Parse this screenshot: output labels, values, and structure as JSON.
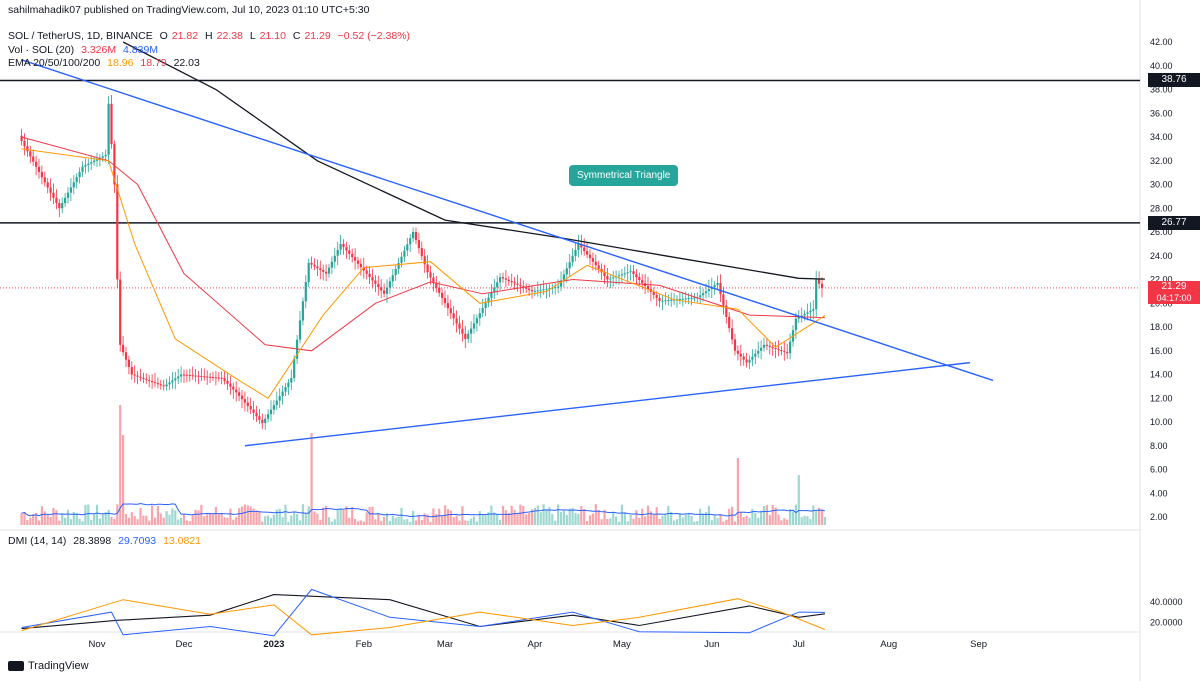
{
  "publisher_line": "sahilmahadik07 published on TradingView.com, Jul 10, 2023 01:10 UTC+5:30",
  "header": {
    "symbol": "SOL / TetherUS, 1D, BINANCE",
    "open_label": "O",
    "open": "21.82",
    "high_label": "H",
    "high": "22.38",
    "low_label": "L",
    "low": "21.10",
    "close_label": "C",
    "close": "21.29",
    "change": "−0.52 (−2.38%)",
    "vol_label": "Vol · SOL (20)",
    "vol_value": "3.326M",
    "vol_ma": "4.839M",
    "ema_label": "EMA 20/50/100/200",
    "ema20": "18.96",
    "ema50": "18.79",
    "ema200": "22.03"
  },
  "dmi": {
    "label": "DMI (14, 14)",
    "adx": "28.3898",
    "plus_di": "29.7093",
    "minus_di": "13.0821"
  },
  "annotation": "Symmetrical Triangle",
  "price_tags": {
    "resistance_top": "38.76",
    "resistance_mid": "26.77",
    "last_price": "21.29",
    "countdown": "04:17:00"
  },
  "branding": "TradingView",
  "colors": {
    "up": "#26a69a",
    "down": "#f23645",
    "trend": "#2962ff",
    "ema20": "#ff9800",
    "ema50": "#f23645",
    "ema200": "#131722",
    "level": "#131722"
  },
  "chart_data": {
    "type": "candlestick",
    "price_axis_ticks": [
      "2.00",
      "4.00",
      "6.00",
      "8.00",
      "10.00",
      "12.00",
      "14.00",
      "16.00",
      "18.00",
      "20.00",
      "22.00",
      "24.00",
      "26.00",
      "28.00",
      "30.00",
      "32.00",
      "34.00",
      "36.00",
      "38.00",
      "40.00",
      "42.00"
    ],
    "dmi_axis_ticks": [
      "20.0000",
      "40.0000"
    ],
    "time_axis_ticks": [
      "Nov",
      "Dec",
      "2023",
      "Feb",
      "Mar",
      "Apr",
      "May",
      "Jun",
      "Jul",
      "Aug",
      "Sep"
    ],
    "horizontal_levels": [
      38.76,
      26.77
    ],
    "close_path": [
      {
        "x": "Oct 6",
        "y": 34.1
      },
      {
        "x": "Oct 20",
        "y": 28.0
      },
      {
        "x": "Oct 28",
        "y": 31.5
      },
      {
        "x": "Nov 5",
        "y": 32.5
      },
      {
        "x": "Nov 6",
        "y": 36.8
      },
      {
        "x": "Nov 8",
        "y": 30.0
      },
      {
        "x": "Nov 9",
        "y": 22.0
      },
      {
        "x": "Nov 10",
        "y": 16.5
      },
      {
        "x": "Nov 14",
        "y": 14.0
      },
      {
        "x": "Nov 25",
        "y": 13.0
      },
      {
        "x": "Dec 1",
        "y": 14.0
      },
      {
        "x": "Dec 15",
        "y": 13.7
      },
      {
        "x": "Dec 20",
        "y": 12.5
      },
      {
        "x": "Dec 29",
        "y": 9.9
      },
      {
        "x": "Jan 8",
        "y": 13.7
      },
      {
        "x": "Jan 14",
        "y": 23.4
      },
      {
        "x": "Jan 20",
        "y": 22.5
      },
      {
        "x": "Jan 25",
        "y": 25.0
      },
      {
        "x": "Feb 9",
        "y": 20.8
      },
      {
        "x": "Feb 19",
        "y": 26.0
      },
      {
        "x": "Feb 24",
        "y": 22.6
      },
      {
        "x": "Mar 9",
        "y": 17.0
      },
      {
        "x": "Mar 21",
        "y": 22.2
      },
      {
        "x": "Apr 1",
        "y": 21.0
      },
      {
        "x": "Apr 10",
        "y": 21.4
      },
      {
        "x": "Apr 17",
        "y": 25.0
      },
      {
        "x": "Apr 27",
        "y": 22.0
      },
      {
        "x": "May 5",
        "y": 22.7
      },
      {
        "x": "May 15",
        "y": 20.2
      },
      {
        "x": "May 28",
        "y": 20.5
      },
      {
        "x": "Jun 4",
        "y": 21.7
      },
      {
        "x": "Jun 10",
        "y": 16.0
      },
      {
        "x": "Jun 14",
        "y": 15.0
      },
      {
        "x": "Jun 20",
        "y": 16.5
      },
      {
        "x": "Jun 28",
        "y": 15.8
      },
      {
        "x": "Jul 1",
        "y": 18.7
      },
      {
        "x": "Jul 7",
        "y": 19.5
      },
      {
        "x": "Jul 8",
        "y": 22.0
      },
      {
        "x": "Jul 10",
        "y": 21.29
      }
    ],
    "ema200_path": [
      {
        "x": "Nov 10",
        "y": 42.0
      },
      {
        "x": "Dec 12",
        "y": 38.0
      },
      {
        "x": "Jan 16",
        "y": 32.0
      },
      {
        "x": "Mar 1",
        "y": 27.0
      },
      {
        "x": "Apr 10",
        "y": 25.5
      },
      {
        "x": "May 16",
        "y": 24.0
      },
      {
        "x": "Jul 1",
        "y": 22.1
      },
      {
        "x": "Jul 10",
        "y": 22.03
      }
    ],
    "ema50_path": [
      {
        "x": "Oct 6",
        "y": 34.0
      },
      {
        "x": "Nov 5",
        "y": 32.0
      },
      {
        "x": "Nov 15",
        "y": 30.0
      },
      {
        "x": "Dec 1",
        "y": 22.5
      },
      {
        "x": "Dec 29",
        "y": 16.5
      },
      {
        "x": "Jan 14",
        "y": 16.0
      },
      {
        "x": "Feb 5",
        "y": 20.0
      },
      {
        "x": "Feb 24",
        "y": 21.8
      },
      {
        "x": "Mar 14",
        "y": 20.8
      },
      {
        "x": "Apr 14",
        "y": 22.0
      },
      {
        "x": "May 14",
        "y": 21.5
      },
      {
        "x": "Jun 14",
        "y": 19.0
      },
      {
        "x": "Jul 10",
        "y": 18.79
      }
    ],
    "ema20_path": [
      {
        "x": "Oct 6",
        "y": 33.0
      },
      {
        "x": "Nov 5",
        "y": 32.0
      },
      {
        "x": "Nov 14",
        "y": 25.0
      },
      {
        "x": "Nov 28",
        "y": 17.0
      },
      {
        "x": "Dec 20",
        "y": 13.5
      },
      {
        "x": "Dec 30",
        "y": 12.0
      },
      {
        "x": "Jan 18",
        "y": 19.0
      },
      {
        "x": "Feb 1",
        "y": 23.0
      },
      {
        "x": "Feb 24",
        "y": 23.5
      },
      {
        "x": "Mar 13",
        "y": 20.0
      },
      {
        "x": "Apr 5",
        "y": 21.0
      },
      {
        "x": "Apr 19",
        "y": 23.2
      },
      {
        "x": "May 19",
        "y": 20.3
      },
      {
        "x": "Jun 10",
        "y": 19.5
      },
      {
        "x": "Jun 23",
        "y": 16.3
      },
      {
        "x": "Jul 10",
        "y": 18.96
      }
    ],
    "trendlines": [
      {
        "name": "upper",
        "from": {
          "x": "Oct 6",
          "y": 40.5
        },
        "to": {
          "x": "Sep 6",
          "y": 13.5
        }
      },
      {
        "name": "lower",
        "from": {
          "x": "Dec 22",
          "y": 8.0
        },
        "to": {
          "x": "Aug 29",
          "y": 15.0
        }
      }
    ],
    "volume": [
      {
        "x": "Nov 9",
        "y": 12.0
      },
      {
        "x": "Nov 10",
        "y": 9.0
      },
      {
        "x": "Jan 14",
        "y": 9.2
      },
      {
        "x": "Jun 10",
        "y": 6.7
      },
      {
        "x": "Jul 1",
        "y": 5.0
      }
    ],
    "dmi_series": {
      "adx": [
        {
          "x": "Oct 6",
          "y": 14
        },
        {
          "x": "Nov 8",
          "y": 22
        },
        {
          "x": "Dec 10",
          "y": 27
        },
        {
          "x": "Jan 1",
          "y": 47
        },
        {
          "x": "Feb 10",
          "y": 42
        },
        {
          "x": "Mar 13",
          "y": 16
        },
        {
          "x": "Apr 14",
          "y": 27
        },
        {
          "x": "May 7",
          "y": 17
        },
        {
          "x": "Jun 14",
          "y": 36
        },
        {
          "x": "Jul 1",
          "y": 25
        },
        {
          "x": "Jul 10",
          "y": 28.39
        }
      ],
      "plus_di": [
        {
          "x": "Oct 6",
          "y": 15
        },
        {
          "x": "Nov 6",
          "y": 30
        },
        {
          "x": "Nov 10",
          "y": 8
        },
        {
          "x": "Dec 10",
          "y": 16
        },
        {
          "x": "Jan 1",
          "y": 7
        },
        {
          "x": "Jan 14",
          "y": 52
        },
        {
          "x": "Feb 10",
          "y": 25
        },
        {
          "x": "Mar 13",
          "y": 16
        },
        {
          "x": "Apr 14",
          "y": 30
        },
        {
          "x": "May 7",
          "y": 11
        },
        {
          "x": "Jun 14",
          "y": 10
        },
        {
          "x": "Jul 1",
          "y": 30
        },
        {
          "x": "Jul 10",
          "y": 29.71
        }
      ],
      "minus_di": [
        {
          "x": "Oct 6",
          "y": 12
        },
        {
          "x": "Nov 10",
          "y": 42
        },
        {
          "x": "Dec 10",
          "y": 28
        },
        {
          "x": "Jan 1",
          "y": 37
        },
        {
          "x": "Jan 14",
          "y": 8
        },
        {
          "x": "Feb 10",
          "y": 15
        },
        {
          "x": "Mar 13",
          "y": 30
        },
        {
          "x": "Apr 14",
          "y": 17
        },
        {
          "x": "May 7",
          "y": 25
        },
        {
          "x": "Jun 10",
          "y": 43
        },
        {
          "x": "Jun 25",
          "y": 30
        },
        {
          "x": "Jul 10",
          "y": 13.08
        }
      ]
    }
  }
}
